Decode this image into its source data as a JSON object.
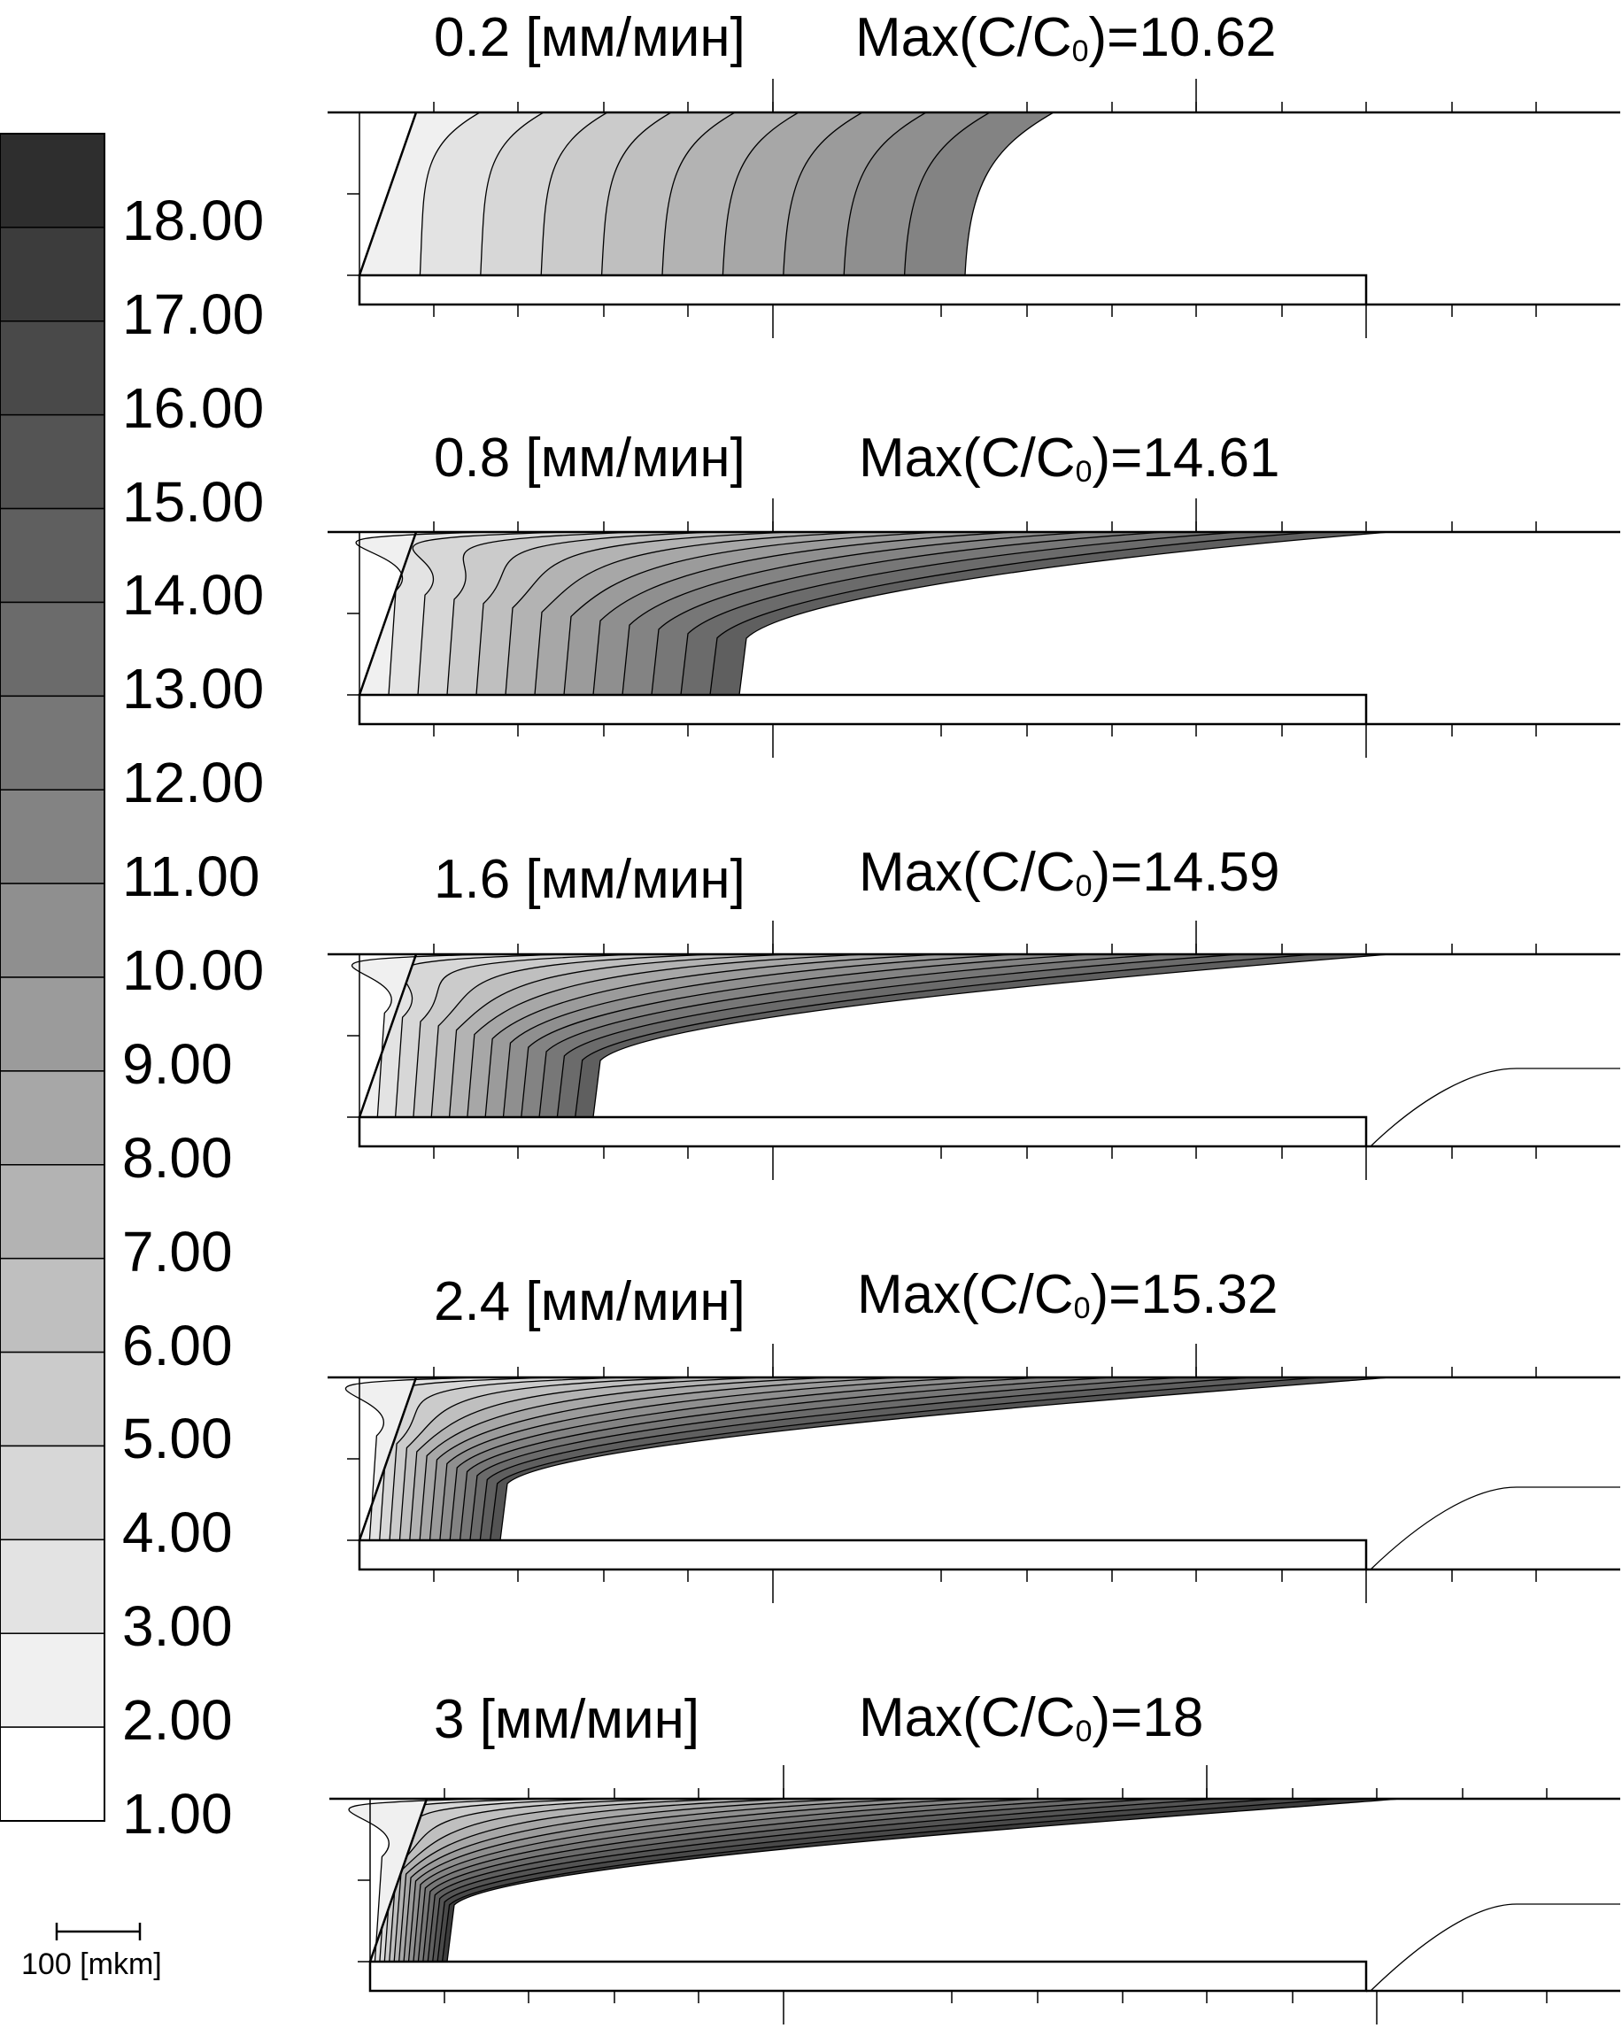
{
  "legend": {
    "levels": [
      "18.00",
      "17.00",
      "16.00",
      "15.00",
      "14.00",
      "13.00",
      "12.00",
      "11.00",
      "10.00",
      "9.00",
      "8.00",
      "7.00",
      "6.00",
      "5.00",
      "4.00",
      "3.00",
      "2.00",
      "1.00"
    ],
    "colors": [
      "#2e2e2e",
      "#3c3c3c",
      "#494949",
      "#545454",
      "#5f5f5f",
      "#6b6b6b",
      "#777777",
      "#838383",
      "#8f8f8f",
      "#9b9b9b",
      "#a7a7a7",
      "#b3b3b3",
      "#bfbfbf",
      "#cbcbcb",
      "#d7d7d7",
      "#e3e3e3",
      "#f0f0f0",
      "#ffffff"
    ]
  },
  "scale": {
    "label": "100 [mkm]"
  },
  "panels": [
    {
      "speed": "0.2 [мм/мин]",
      "max_prefix": "Max(C/C",
      "max_sub": "0",
      "max_suffix": ")=10.62"
    },
    {
      "speed": "0.8 [мм/мин]",
      "max_prefix": "Max(C/C",
      "max_sub": "0",
      "max_suffix": ")=14.61"
    },
    {
      "speed": "1.6 [мм/мин]",
      "max_prefix": "Max(C/C",
      "max_sub": "0",
      "max_suffix": ")=14.59"
    },
    {
      "speed": "2.4 [мм/мин]",
      "max_prefix": "Max(C/C",
      "max_sub": "0",
      "max_suffix": ")=15.32"
    },
    {
      "speed": "3 [мм/мин]",
      "max_prefix": "Max(C/C",
      "max_sub": "0",
      "max_suffix": ")=18"
    }
  ]
}
